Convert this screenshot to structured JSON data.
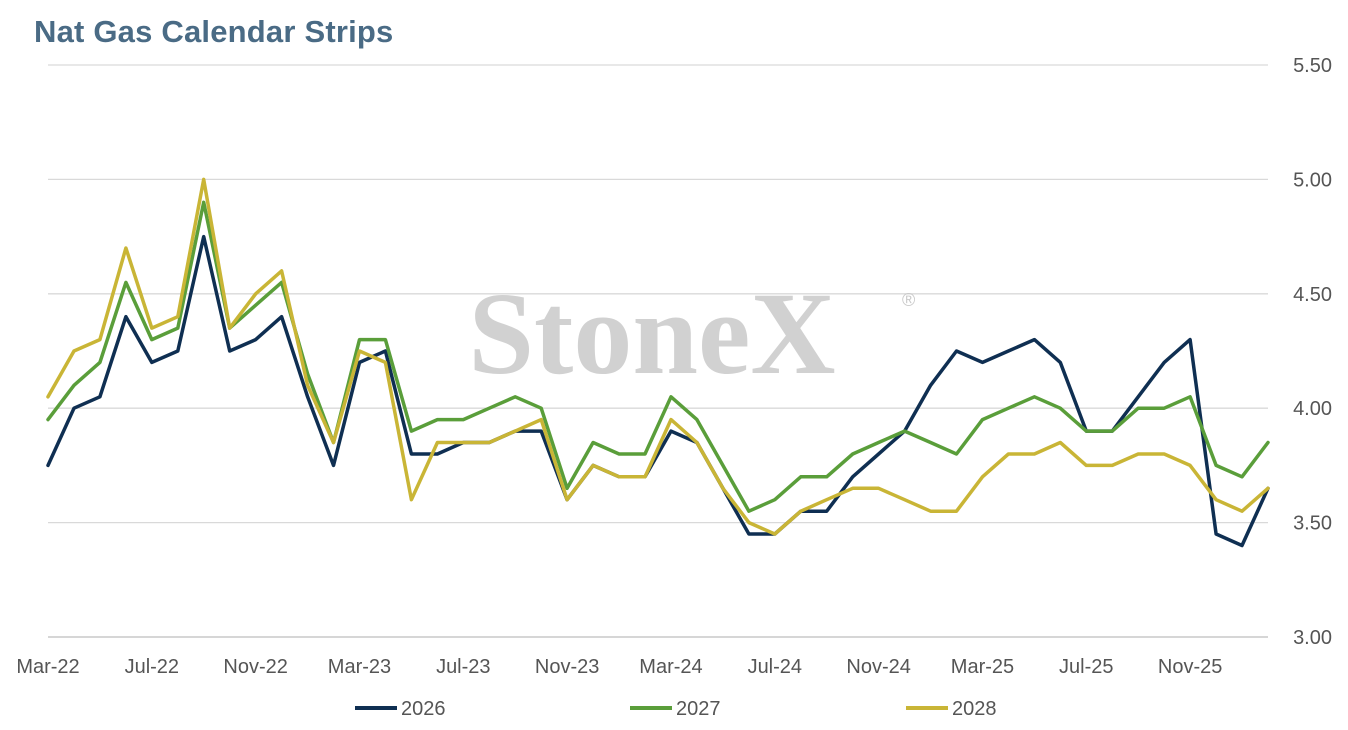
{
  "chart_data": {
    "type": "line",
    "title": "Nat Gas Calendar Strips",
    "watermark": "StoneX",
    "watermark_mark": "®",
    "x_tick_labels": [
      "Mar-22",
      "Jul-22",
      "Nov-22",
      "Mar-23",
      "Jul-23",
      "Nov-23",
      "Mar-24",
      "Jul-24",
      "Nov-24",
      "Mar-25",
      "Jul-25",
      "Nov-25"
    ],
    "y_tick_labels": [
      "3.00",
      "3.50",
      "4.00",
      "4.50",
      "5.00",
      "5.50"
    ],
    "ylim": [
      3.0,
      5.5
    ],
    "xlim": [
      "2022-03",
      "2026-03"
    ],
    "y_axis_side": "right",
    "grid": "horizontal",
    "legend_position": "bottom",
    "colors": {
      "2026": "#0f2f52",
      "2027": "#5a9e3a",
      "2028": "#c9b536"
    },
    "x": [
      "2022-03",
      "2022-04",
      "2022-05",
      "2022-06",
      "2022-07",
      "2022-08",
      "2022-09",
      "2022-10",
      "2022-11",
      "2022-12",
      "2023-01",
      "2023-02",
      "2023-03",
      "2023-04",
      "2023-05",
      "2023-06",
      "2023-07",
      "2023-08",
      "2023-09",
      "2023-10",
      "2023-11",
      "2023-12",
      "2024-01",
      "2024-02",
      "2024-03",
      "2024-04",
      "2024-05",
      "2024-06",
      "2024-07",
      "2024-08",
      "2024-09",
      "2024-10",
      "2024-11",
      "2024-12",
      "2025-01",
      "2025-02",
      "2025-03",
      "2025-04",
      "2025-05",
      "2025-06",
      "2025-07",
      "2025-08",
      "2025-09",
      "2025-10",
      "2025-11",
      "2025-12",
      "2026-01",
      "2026-02"
    ],
    "series": [
      {
        "name": "2026",
        "values": [
          3.75,
          4.0,
          4.05,
          4.4,
          4.2,
          4.25,
          4.75,
          4.25,
          4.3,
          4.4,
          4.05,
          3.75,
          4.2,
          4.25,
          3.8,
          3.8,
          3.85,
          3.85,
          3.9,
          3.9,
          3.6,
          3.75,
          3.7,
          3.7,
          3.9,
          3.85,
          3.65,
          3.45,
          3.45,
          3.55,
          3.55,
          3.7,
          3.8,
          3.9,
          4.1,
          4.25,
          4.2,
          4.25,
          4.3,
          4.2,
          3.9,
          3.9,
          4.05,
          4.2,
          4.3,
          3.45,
          3.4,
          3.65
        ]
      },
      {
        "name": "2027",
        "values": [
          3.95,
          4.1,
          4.2,
          4.55,
          4.3,
          4.35,
          4.9,
          4.35,
          4.45,
          4.55,
          4.15,
          3.85,
          4.3,
          4.3,
          3.9,
          3.95,
          3.95,
          4.0,
          4.05,
          4.0,
          3.65,
          3.85,
          3.8,
          3.8,
          4.05,
          3.95,
          3.75,
          3.55,
          3.6,
          3.7,
          3.7,
          3.8,
          3.85,
          3.9,
          3.85,
          3.8,
          3.95,
          4.0,
          4.05,
          4.0,
          3.9,
          3.9,
          4.0,
          4.0,
          4.05,
          3.75,
          3.7,
          3.85
        ]
      },
      {
        "name": "2028",
        "values": [
          4.05,
          4.25,
          4.3,
          4.7,
          4.35,
          4.4,
          5.0,
          4.35,
          4.5,
          4.6,
          4.1,
          3.85,
          4.25,
          4.2,
          3.6,
          3.85,
          3.85,
          3.85,
          3.9,
          3.95,
          3.6,
          3.75,
          3.7,
          3.7,
          3.95,
          3.85,
          3.65,
          3.5,
          3.45,
          3.55,
          3.6,
          3.65,
          3.65,
          3.6,
          3.55,
          3.55,
          3.7,
          3.8,
          3.8,
          3.85,
          3.75,
          3.75,
          3.8,
          3.8,
          3.75,
          3.6,
          3.55,
          3.65
        ]
      }
    ]
  }
}
